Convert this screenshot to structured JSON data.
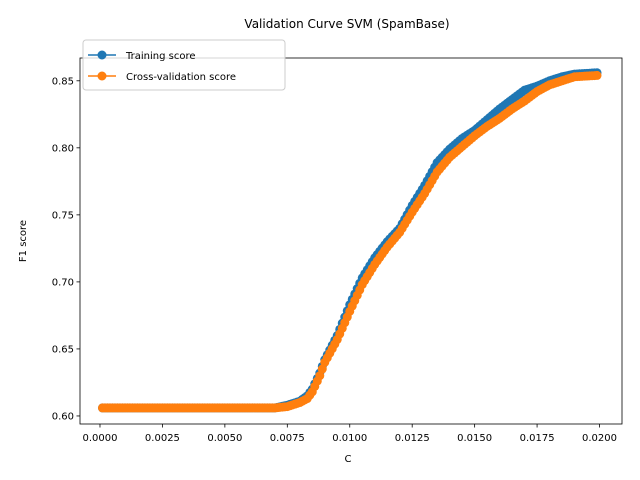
{
  "chart_data": {
    "type": "line",
    "title": "Validation Curve SVM (SpamBase)",
    "xlabel": "C",
    "ylabel": "F1 score",
    "xlim": [
      -0.0008,
      0.0209
    ],
    "ylim": [
      0.594,
      0.867
    ],
    "xticks": [
      0.0,
      0.0025,
      0.005,
      0.0075,
      0.01,
      0.0125,
      0.015,
      0.0175,
      0.02
    ],
    "xtick_labels": [
      "0.0000",
      "0.0025",
      "0.0050",
      "0.0075",
      "0.0100",
      "0.0125",
      "0.0150",
      "0.0175",
      "0.0200"
    ],
    "yticks": [
      0.6,
      0.65,
      0.7,
      0.75,
      0.8,
      0.85
    ],
    "ytick_labels": [
      "0.60",
      "0.65",
      "0.70",
      "0.75",
      "0.80",
      "0.85"
    ],
    "grid": false,
    "legend_position": "upper-left",
    "curve_knots": {
      "x": [
        0.0001,
        0.007,
        0.0075,
        0.008,
        0.0083,
        0.0085,
        0.0088,
        0.009,
        0.0095,
        0.01,
        0.0105,
        0.011,
        0.0115,
        0.012,
        0.0125,
        0.013,
        0.0135,
        0.014,
        0.0145,
        0.015,
        0.0155,
        0.016,
        0.0165,
        0.017,
        0.0175,
        0.018,
        0.0185,
        0.019,
        0.0199
      ],
      "train": [
        0.606,
        0.606,
        0.608,
        0.611,
        0.615,
        0.62,
        0.632,
        0.642,
        0.66,
        0.683,
        0.703,
        0.718,
        0.73,
        0.74,
        0.757,
        0.772,
        0.789,
        0.799,
        0.807,
        0.813,
        0.821,
        0.829,
        0.836,
        0.843,
        0.846,
        0.85,
        0.853,
        0.855,
        0.856
      ],
      "cv": [
        0.606,
        0.606,
        0.607,
        0.61,
        0.613,
        0.618,
        0.63,
        0.64,
        0.657,
        0.678,
        0.698,
        0.713,
        0.726,
        0.737,
        0.752,
        0.766,
        0.782,
        0.793,
        0.801,
        0.809,
        0.816,
        0.822,
        0.829,
        0.835,
        0.842,
        0.847,
        0.85,
        0.853,
        0.854
      ]
    },
    "x_step": 0.0001,
    "series": [
      {
        "name": "Training score",
        "key": "train",
        "color": "#1f77b4",
        "marker": "circle"
      },
      {
        "name": "Cross-validation score",
        "key": "cv",
        "color": "#ff7f0e",
        "marker": "circle"
      }
    ]
  }
}
